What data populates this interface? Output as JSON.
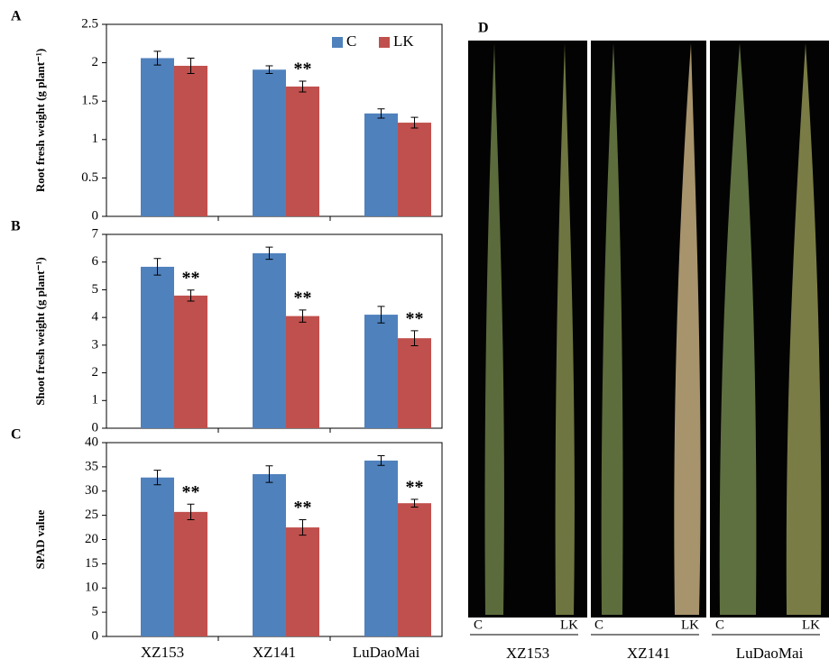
{
  "chart_data": [
    {
      "type": "bar",
      "panel_label": "A",
      "ylabel": "Root fresh weight (g plant⁻¹)",
      "categories": [
        null,
        null,
        null
      ],
      "series": [
        {
          "name": "C",
          "color": "#4f81bd",
          "values": [
            2.06,
            1.91,
            1.34
          ],
          "errors": [
            0.09,
            0.05,
            0.06
          ],
          "significance": [
            null,
            null,
            null
          ]
        },
        {
          "name": "LK",
          "color": "#c0504d",
          "values": [
            1.96,
            1.69,
            1.22
          ],
          "errors": [
            0.1,
            0.07,
            0.07
          ],
          "significance": [
            null,
            "**",
            null
          ]
        }
      ],
      "ylim": [
        0,
        2.5
      ],
      "yticks": [
        0,
        0.5,
        1,
        1.5,
        2,
        2.5
      ],
      "legend": "top-right"
    },
    {
      "type": "bar",
      "panel_label": "B",
      "ylabel": "Shoot fresh weight (g plant⁻¹)",
      "categories": [
        null,
        null,
        null
      ],
      "series": [
        {
          "color": "#4f81bd",
          "values": [
            5.83,
            6.32,
            4.1
          ],
          "errors": [
            0.3,
            0.22,
            0.3
          ],
          "significance": [
            null,
            null,
            null
          ]
        },
        {
          "color": "#c0504d",
          "values": [
            4.79,
            4.05,
            3.25
          ],
          "errors": [
            0.2,
            0.22,
            0.27
          ],
          "significance": [
            "**",
            "**",
            "**"
          ]
        }
      ],
      "ylim": [
        0,
        7
      ],
      "yticks": [
        0,
        1,
        2,
        3,
        4,
        5,
        6,
        7
      ]
    },
    {
      "type": "bar",
      "panel_label": "C",
      "ylabel": "SPAD value",
      "categories": [
        "XZ153",
        "XZ141",
        "LuDaoMai"
      ],
      "series": [
        {
          "color": "#4f81bd",
          "values": [
            32.8,
            33.5,
            36.3
          ],
          "errors": [
            1.5,
            1.7,
            1.0
          ],
          "significance": [
            null,
            null,
            null
          ]
        },
        {
          "color": "#c0504d",
          "values": [
            25.7,
            22.5,
            27.5
          ],
          "errors": [
            1.6,
            1.6,
            0.8
          ],
          "significance": [
            "**",
            "**",
            "**"
          ]
        }
      ],
      "ylim": [
        0,
        40
      ],
      "yticks": [
        0,
        5,
        10,
        15,
        20,
        25,
        30,
        35,
        40
      ]
    }
  ],
  "photo_panel": {
    "label": "D",
    "groups": [
      {
        "name": "XZ153",
        "treatments": [
          "C",
          "LK"
        ]
      },
      {
        "name": "XZ141",
        "treatments": [
          "C",
          "LK"
        ]
      },
      {
        "name": "LuDaoMai",
        "treatments": [
          "C",
          "LK"
        ]
      }
    ]
  }
}
